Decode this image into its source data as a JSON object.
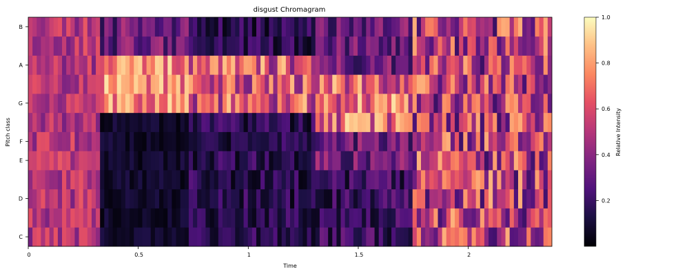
{
  "chart_data": {
    "type": "heatmap",
    "title": "disgust Chromagram",
    "xlabel": "Time",
    "ylabel": "Pitch class",
    "xlim": [
      0,
      2.38
    ],
    "x_ticks": [
      0,
      0.5,
      1,
      1.5,
      2
    ],
    "x_tick_labels": [
      "0",
      "0.5",
      "1",
      "1.5",
      "2"
    ],
    "pitch_classes": [
      "C",
      "C#",
      "D",
      "D#",
      "E",
      "F",
      "F#",
      "G",
      "G#",
      "A",
      "A#",
      "B"
    ],
    "y_tick_labels": [
      "C",
      "D",
      "E",
      "F",
      "G",
      "A",
      "B"
    ],
    "y_tick_classes": [
      "C",
      "D",
      "E",
      "F",
      "G",
      "A",
      "B"
    ],
    "colorbar": {
      "label": "Relative Intensity",
      "colormap": "magma",
      "range": [
        0,
        1
      ],
      "ticks": [
        0.2,
        0.4,
        0.6,
        0.8,
        1.0
      ],
      "tick_labels": [
        "0.2",
        "0.4",
        "0.6",
        "0.8",
        "1.0"
      ]
    },
    "frame_segments": [
      {
        "name": "segment-1",
        "time_range": [
          0,
          0.33
        ],
        "character": "mixed moderate intensity across classes"
      },
      {
        "name": "segment-2",
        "time_range": [
          0.33,
          0.72
        ],
        "character": "low intensity in C–F, high in G#–A"
      },
      {
        "name": "segment-3",
        "time_range": [
          0.72,
          1.3
        ],
        "character": "low intensity with bright streaks in G–A"
      },
      {
        "name": "segment-4",
        "time_range": [
          1.3,
          1.75
        ],
        "character": "bright G/G# band, dark low classes"
      },
      {
        "name": "segment-5",
        "time_range": [
          1.75,
          2.38
        ],
        "character": "mixed moderate-high intensity"
      }
    ]
  }
}
